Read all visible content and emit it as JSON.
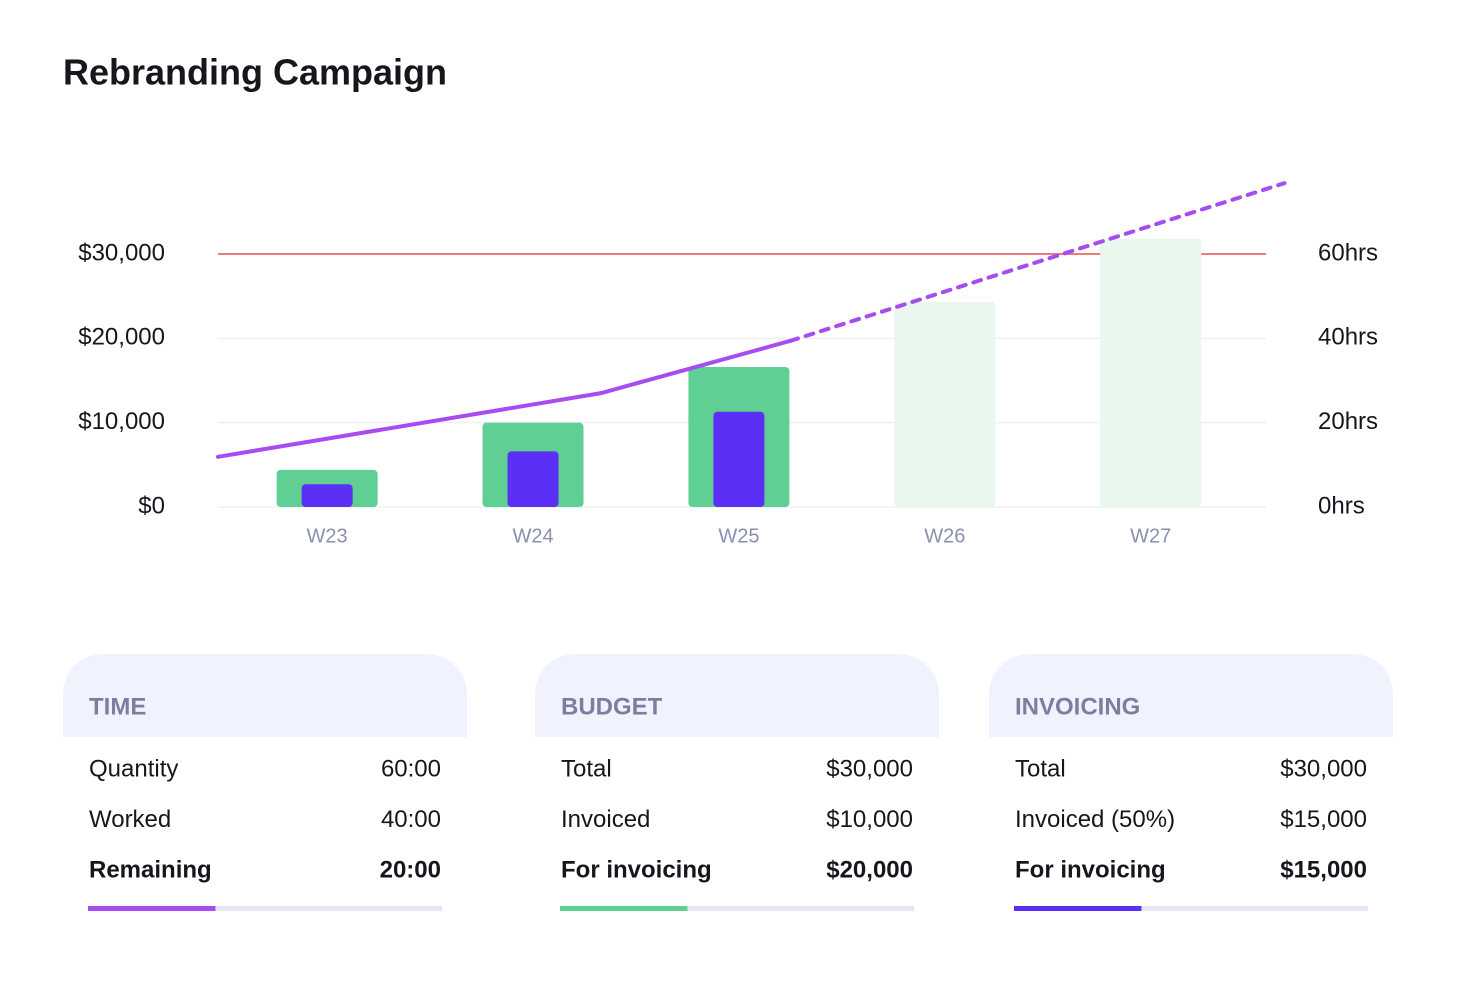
{
  "chart_data": {
    "type": "bar",
    "title": "Rebranding Campaign",
    "categories": [
      "W23",
      "W24",
      "W25",
      "W26",
      "W27"
    ],
    "x": [
      23,
      24,
      25,
      26,
      27
    ],
    "xlim": [
      22.47,
      27.56
    ],
    "ylim": [
      0,
      38500
    ],
    "yticks": [
      {
        "value": 0,
        "label": "$0"
      },
      {
        "value": 10000,
        "label": "$10,000"
      },
      {
        "value": 20000,
        "label": "$20,000"
      },
      {
        "value": 30000,
        "label": "$30,000"
      }
    ],
    "y2lim": [
      0,
      77
    ],
    "y2ticks": [
      {
        "value": 0,
        "label": "0hrs"
      },
      {
        "value": 20,
        "label": "20hrs"
      },
      {
        "value": 40,
        "label": "40hrs"
      },
      {
        "value": 60,
        "label": "60hrs"
      }
    ],
    "grid": true,
    "series": [
      {
        "colors": [
          "#5fcf94",
          "#5fcf94",
          "#5fcf94",
          "#eaf7ee",
          "#eaf7ee"
        ],
        "values": [
          4400,
          10000,
          16600,
          24300,
          31800
        ]
      },
      {
        "color": "#5b2ff5",
        "values": [
          2700,
          6600,
          11300,
          null,
          null
        ]
      },
      {
        "type": "line",
        "axis": "y2",
        "color": "#a64df2",
        "x": [
          22.47,
          24.33,
          25.25
        ],
        "values": [
          11.9,
          27,
          39.4
        ]
      },
      {
        "type": "line",
        "axis": "y2",
        "color": "#a64df2",
        "dashed": true,
        "x": [
          25.25,
          27.65
        ],
        "values": [
          39.4,
          76.8
        ]
      }
    ],
    "reference_line": {
      "value": 30000,
      "color": "#f07b7b"
    }
  },
  "cards": [
    {
      "title": "TIME",
      "rows": [
        [
          "Quantity",
          "60:00"
        ],
        [
          "Worked",
          "40:00"
        ],
        [
          "Remaining",
          "20:00"
        ]
      ],
      "progress": 36,
      "color": "#a64df2"
    },
    {
      "title": "BUDGET",
      "rows": [
        [
          "Total",
          "$30,000"
        ],
        [
          "Invoiced",
          "$10,000"
        ],
        [
          "For invoicing",
          "$20,000"
        ]
      ],
      "progress": 36,
      "color": "#5fcf94"
    },
    {
      "title": "INVOICING",
      "rows": [
        [
          "Total",
          "$30,000"
        ],
        [
          "Invoiced (50%)",
          "$15,000"
        ],
        [
          "For invoicing",
          "$15,000"
        ]
      ],
      "progress": 36,
      "color": "#5b2ff5"
    }
  ]
}
